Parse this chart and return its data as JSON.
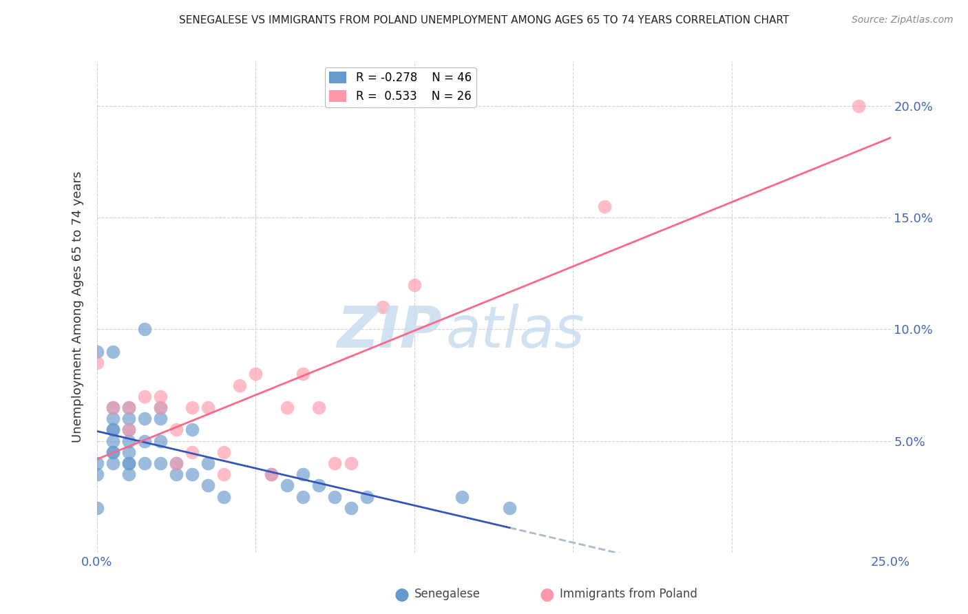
{
  "title": "SENEGALESE VS IMMIGRANTS FROM POLAND UNEMPLOYMENT AMONG AGES 65 TO 74 YEARS CORRELATION CHART",
  "source": "Source: ZipAtlas.com",
  "ylabel": "Unemployment Among Ages 65 to 74 years",
  "x_min": 0.0,
  "x_max": 0.25,
  "y_min": 0.0,
  "y_max": 0.22,
  "legend_r1": "R = -0.278",
  "legend_n1": "N = 46",
  "legend_r2": "R =  0.533",
  "legend_n2": "N = 26",
  "color_blue": "#6699CC",
  "color_pink": "#FF99AA",
  "color_axis_label": "#4466BB",
  "background_color": "#FFFFFF",
  "senegalese_x": [
    0.0,
    0.0,
    0.0,
    0.0,
    0.005,
    0.005,
    0.005,
    0.005,
    0.005,
    0.005,
    0.005,
    0.005,
    0.005,
    0.01,
    0.01,
    0.01,
    0.01,
    0.01,
    0.01,
    0.01,
    0.01,
    0.015,
    0.015,
    0.015,
    0.015,
    0.02,
    0.02,
    0.02,
    0.02,
    0.025,
    0.025,
    0.03,
    0.03,
    0.035,
    0.035,
    0.04,
    0.055,
    0.06,
    0.065,
    0.065,
    0.07,
    0.075,
    0.08,
    0.085,
    0.115,
    0.13
  ],
  "senegalese_y": [
    0.02,
    0.035,
    0.04,
    0.09,
    0.04,
    0.045,
    0.045,
    0.05,
    0.055,
    0.055,
    0.06,
    0.065,
    0.09,
    0.035,
    0.04,
    0.04,
    0.045,
    0.05,
    0.055,
    0.06,
    0.065,
    0.04,
    0.05,
    0.06,
    0.1,
    0.04,
    0.05,
    0.06,
    0.065,
    0.035,
    0.04,
    0.035,
    0.055,
    0.03,
    0.04,
    0.025,
    0.035,
    0.03,
    0.025,
    0.035,
    0.03,
    0.025,
    0.02,
    0.025,
    0.025,
    0.02
  ],
  "poland_x": [
    0.0,
    0.005,
    0.01,
    0.01,
    0.015,
    0.02,
    0.02,
    0.025,
    0.025,
    0.03,
    0.03,
    0.035,
    0.04,
    0.04,
    0.045,
    0.05,
    0.055,
    0.06,
    0.065,
    0.07,
    0.075,
    0.08,
    0.09,
    0.1,
    0.16,
    0.24
  ],
  "poland_y": [
    0.085,
    0.065,
    0.055,
    0.065,
    0.07,
    0.065,
    0.07,
    0.04,
    0.055,
    0.045,
    0.065,
    0.065,
    0.035,
    0.045,
    0.075,
    0.08,
    0.035,
    0.065,
    0.08,
    0.065,
    0.04,
    0.04,
    0.11,
    0.12,
    0.155,
    0.2
  ]
}
